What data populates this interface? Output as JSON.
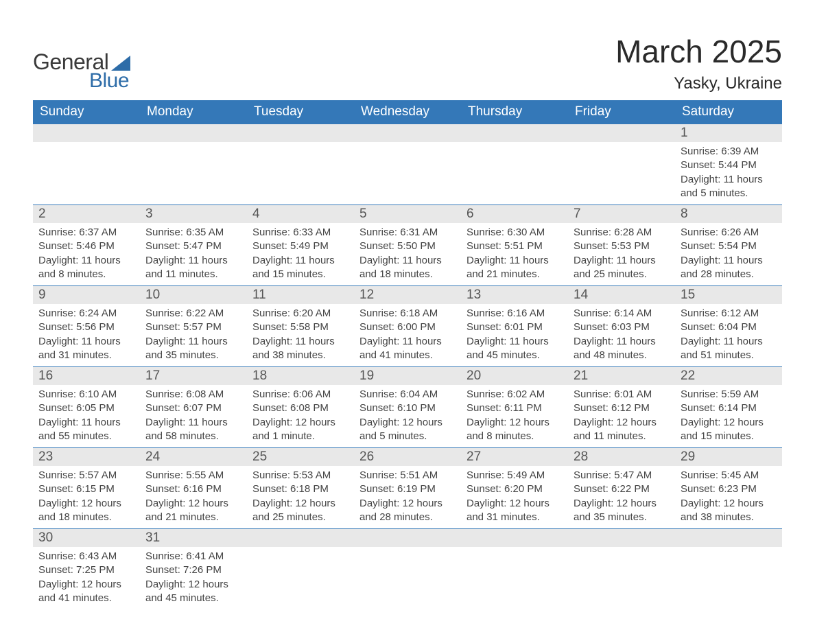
{
  "brand": {
    "general": "General",
    "blue": "Blue"
  },
  "title": {
    "month": "March 2025",
    "location": "Yasky, Ukraine"
  },
  "colors": {
    "header_bg": "#3478b8",
    "header_text": "#ffffff",
    "row_separator": "#3478b8",
    "daynum_bg": "#e8e8e8",
    "body_text": "#444444",
    "logo_accent": "#2d6ca8"
  },
  "weekdays": [
    "Sunday",
    "Monday",
    "Tuesday",
    "Wednesday",
    "Thursday",
    "Friday",
    "Saturday"
  ],
  "weeks": [
    [
      null,
      null,
      null,
      null,
      null,
      null,
      {
        "day": "1",
        "sunrise": "Sunrise: 6:39 AM",
        "sunset": "Sunset: 5:44 PM",
        "daylight": "Daylight: 11 hours and 5 minutes."
      }
    ],
    [
      {
        "day": "2",
        "sunrise": "Sunrise: 6:37 AM",
        "sunset": "Sunset: 5:46 PM",
        "daylight": "Daylight: 11 hours and 8 minutes."
      },
      {
        "day": "3",
        "sunrise": "Sunrise: 6:35 AM",
        "sunset": "Sunset: 5:47 PM",
        "daylight": "Daylight: 11 hours and 11 minutes."
      },
      {
        "day": "4",
        "sunrise": "Sunrise: 6:33 AM",
        "sunset": "Sunset: 5:49 PM",
        "daylight": "Daylight: 11 hours and 15 minutes."
      },
      {
        "day": "5",
        "sunrise": "Sunrise: 6:31 AM",
        "sunset": "Sunset: 5:50 PM",
        "daylight": "Daylight: 11 hours and 18 minutes."
      },
      {
        "day": "6",
        "sunrise": "Sunrise: 6:30 AM",
        "sunset": "Sunset: 5:51 PM",
        "daylight": "Daylight: 11 hours and 21 minutes."
      },
      {
        "day": "7",
        "sunrise": "Sunrise: 6:28 AM",
        "sunset": "Sunset: 5:53 PM",
        "daylight": "Daylight: 11 hours and 25 minutes."
      },
      {
        "day": "8",
        "sunrise": "Sunrise: 6:26 AM",
        "sunset": "Sunset: 5:54 PM",
        "daylight": "Daylight: 11 hours and 28 minutes."
      }
    ],
    [
      {
        "day": "9",
        "sunrise": "Sunrise: 6:24 AM",
        "sunset": "Sunset: 5:56 PM",
        "daylight": "Daylight: 11 hours and 31 minutes."
      },
      {
        "day": "10",
        "sunrise": "Sunrise: 6:22 AM",
        "sunset": "Sunset: 5:57 PM",
        "daylight": "Daylight: 11 hours and 35 minutes."
      },
      {
        "day": "11",
        "sunrise": "Sunrise: 6:20 AM",
        "sunset": "Sunset: 5:58 PM",
        "daylight": "Daylight: 11 hours and 38 minutes."
      },
      {
        "day": "12",
        "sunrise": "Sunrise: 6:18 AM",
        "sunset": "Sunset: 6:00 PM",
        "daylight": "Daylight: 11 hours and 41 minutes."
      },
      {
        "day": "13",
        "sunrise": "Sunrise: 6:16 AM",
        "sunset": "Sunset: 6:01 PM",
        "daylight": "Daylight: 11 hours and 45 minutes."
      },
      {
        "day": "14",
        "sunrise": "Sunrise: 6:14 AM",
        "sunset": "Sunset: 6:03 PM",
        "daylight": "Daylight: 11 hours and 48 minutes."
      },
      {
        "day": "15",
        "sunrise": "Sunrise: 6:12 AM",
        "sunset": "Sunset: 6:04 PM",
        "daylight": "Daylight: 11 hours and 51 minutes."
      }
    ],
    [
      {
        "day": "16",
        "sunrise": "Sunrise: 6:10 AM",
        "sunset": "Sunset: 6:05 PM",
        "daylight": "Daylight: 11 hours and 55 minutes."
      },
      {
        "day": "17",
        "sunrise": "Sunrise: 6:08 AM",
        "sunset": "Sunset: 6:07 PM",
        "daylight": "Daylight: 11 hours and 58 minutes."
      },
      {
        "day": "18",
        "sunrise": "Sunrise: 6:06 AM",
        "sunset": "Sunset: 6:08 PM",
        "daylight": "Daylight: 12 hours and 1 minute."
      },
      {
        "day": "19",
        "sunrise": "Sunrise: 6:04 AM",
        "sunset": "Sunset: 6:10 PM",
        "daylight": "Daylight: 12 hours and 5 minutes."
      },
      {
        "day": "20",
        "sunrise": "Sunrise: 6:02 AM",
        "sunset": "Sunset: 6:11 PM",
        "daylight": "Daylight: 12 hours and 8 minutes."
      },
      {
        "day": "21",
        "sunrise": "Sunrise: 6:01 AM",
        "sunset": "Sunset: 6:12 PM",
        "daylight": "Daylight: 12 hours and 11 minutes."
      },
      {
        "day": "22",
        "sunrise": "Sunrise: 5:59 AM",
        "sunset": "Sunset: 6:14 PM",
        "daylight": "Daylight: 12 hours and 15 minutes."
      }
    ],
    [
      {
        "day": "23",
        "sunrise": "Sunrise: 5:57 AM",
        "sunset": "Sunset: 6:15 PM",
        "daylight": "Daylight: 12 hours and 18 minutes."
      },
      {
        "day": "24",
        "sunrise": "Sunrise: 5:55 AM",
        "sunset": "Sunset: 6:16 PM",
        "daylight": "Daylight: 12 hours and 21 minutes."
      },
      {
        "day": "25",
        "sunrise": "Sunrise: 5:53 AM",
        "sunset": "Sunset: 6:18 PM",
        "daylight": "Daylight: 12 hours and 25 minutes."
      },
      {
        "day": "26",
        "sunrise": "Sunrise: 5:51 AM",
        "sunset": "Sunset: 6:19 PM",
        "daylight": "Daylight: 12 hours and 28 minutes."
      },
      {
        "day": "27",
        "sunrise": "Sunrise: 5:49 AM",
        "sunset": "Sunset: 6:20 PM",
        "daylight": "Daylight: 12 hours and 31 minutes."
      },
      {
        "day": "28",
        "sunrise": "Sunrise: 5:47 AM",
        "sunset": "Sunset: 6:22 PM",
        "daylight": "Daylight: 12 hours and 35 minutes."
      },
      {
        "day": "29",
        "sunrise": "Sunrise: 5:45 AM",
        "sunset": "Sunset: 6:23 PM",
        "daylight": "Daylight: 12 hours and 38 minutes."
      }
    ],
    [
      {
        "day": "30",
        "sunrise": "Sunrise: 6:43 AM",
        "sunset": "Sunset: 7:25 PM",
        "daylight": "Daylight: 12 hours and 41 minutes."
      },
      {
        "day": "31",
        "sunrise": "Sunrise: 6:41 AM",
        "sunset": "Sunset: 7:26 PM",
        "daylight": "Daylight: 12 hours and 45 minutes."
      },
      null,
      null,
      null,
      null,
      null
    ]
  ]
}
